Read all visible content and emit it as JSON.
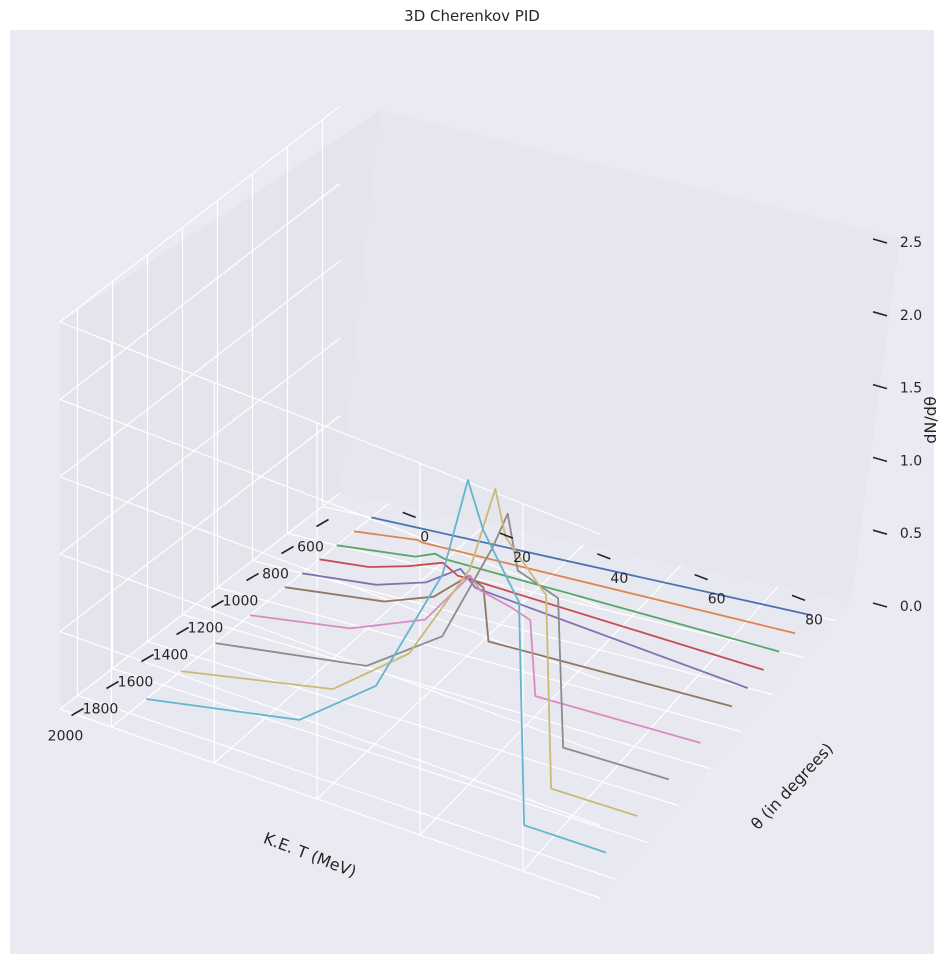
{
  "chart_data": {
    "type": "line",
    "projection": "3d",
    "title": "3D Cherenkov PID",
    "xlabel": "K.E. T (MeV)",
    "ylabel": "θ (in degrees)",
    "zlabel": "dN/dθ",
    "xlim": [
      500,
      2100
    ],
    "ylim": [
      -10,
      95
    ],
    "zlim": [
      0,
      2.5
    ],
    "xticks": [
      600,
      800,
      1000,
      1200,
      1400,
      1600,
      1800,
      2000
    ],
    "yticks": [
      0,
      20,
      40,
      60,
      80
    ],
    "zticks": [
      "0.0",
      "0.5",
      "1.0",
      "1.5",
      "2.0",
      "2.5"
    ],
    "grid": true,
    "series": [
      {
        "color": "#4c72b0",
        "x": 600,
        "theta": [
          0,
          90
        ],
        "dNdtheta": [
          0,
          0
        ]
      },
      {
        "color": "#dd8452",
        "x": 700,
        "points": [
          [
            0,
            0
          ],
          [
            13,
            0.04
          ],
          [
            14,
            0.03
          ],
          [
            90,
            0
          ]
        ]
      },
      {
        "color": "#55a868",
        "x": 800,
        "points": [
          [
            0,
            0
          ],
          [
            16,
            0.05
          ],
          [
            20,
            0.1
          ],
          [
            22,
            0.08
          ],
          [
            90,
            0
          ]
        ]
      },
      {
        "color": "#c44e52",
        "x": 900,
        "points": [
          [
            0,
            0
          ],
          [
            10,
            0.03
          ],
          [
            18,
            0.1
          ],
          [
            25,
            0.18
          ],
          [
            28,
            0.12
          ],
          [
            90,
            0
          ]
        ]
      },
      {
        "color": "#8172b3",
        "x": 1000,
        "points": [
          [
            0,
            0
          ],
          [
            15,
            0.05
          ],
          [
            25,
            0.15
          ],
          [
            32,
            0.3
          ],
          [
            35,
            0.2
          ],
          [
            90,
            0
          ]
        ]
      },
      {
        "color": "#937860",
        "x": 1100,
        "points": [
          [
            0,
            0
          ],
          [
            20,
            0.08
          ],
          [
            30,
            0.2
          ],
          [
            37,
            0.4
          ],
          [
            40,
            0.35
          ],
          [
            41,
            0
          ],
          [
            90,
            0
          ]
        ]
      },
      {
        "color": "#da8bc3",
        "x": 1300,
        "points": [
          [
            0,
            0
          ],
          [
            20,
            0.1
          ],
          [
            35,
            0.3
          ],
          [
            44,
            0.68
          ],
          [
            46,
            0.6
          ],
          [
            52,
            0.55
          ],
          [
            56,
            0.5
          ],
          [
            57,
            0
          ],
          [
            90,
            0
          ]
        ]
      },
      {
        "color": "#8c8c8c",
        "x": 1500,
        "points": [
          [
            0,
            0
          ],
          [
            30,
            0.15
          ],
          [
            45,
            0.5
          ],
          [
            55,
            1.2
          ],
          [
            58,
            1.46
          ],
          [
            60,
            1.1
          ],
          [
            68,
            1.0
          ],
          [
            69,
            0
          ],
          [
            90,
            0
          ]
        ]
      },
      {
        "color": "#ccb974",
        "x": 1700,
        "points": [
          [
            0,
            0
          ],
          [
            30,
            0.2
          ],
          [
            45,
            0.6
          ],
          [
            57,
            1.3
          ],
          [
            62,
            1.9
          ],
          [
            64,
            1.6
          ],
          [
            72,
            1.3
          ],
          [
            73,
            0
          ],
          [
            90,
            0
          ]
        ]
      },
      {
        "color": "#64b5cd",
        "x": 1900,
        "points": [
          [
            0,
            0
          ],
          [
            30,
            0.2
          ],
          [
            45,
            0.6
          ],
          [
            58,
            1.5
          ],
          [
            63,
            2.2
          ],
          [
            66,
            1.9
          ],
          [
            73,
            1.5
          ],
          [
            74,
            0
          ],
          [
            90,
            0
          ]
        ]
      }
    ]
  }
}
